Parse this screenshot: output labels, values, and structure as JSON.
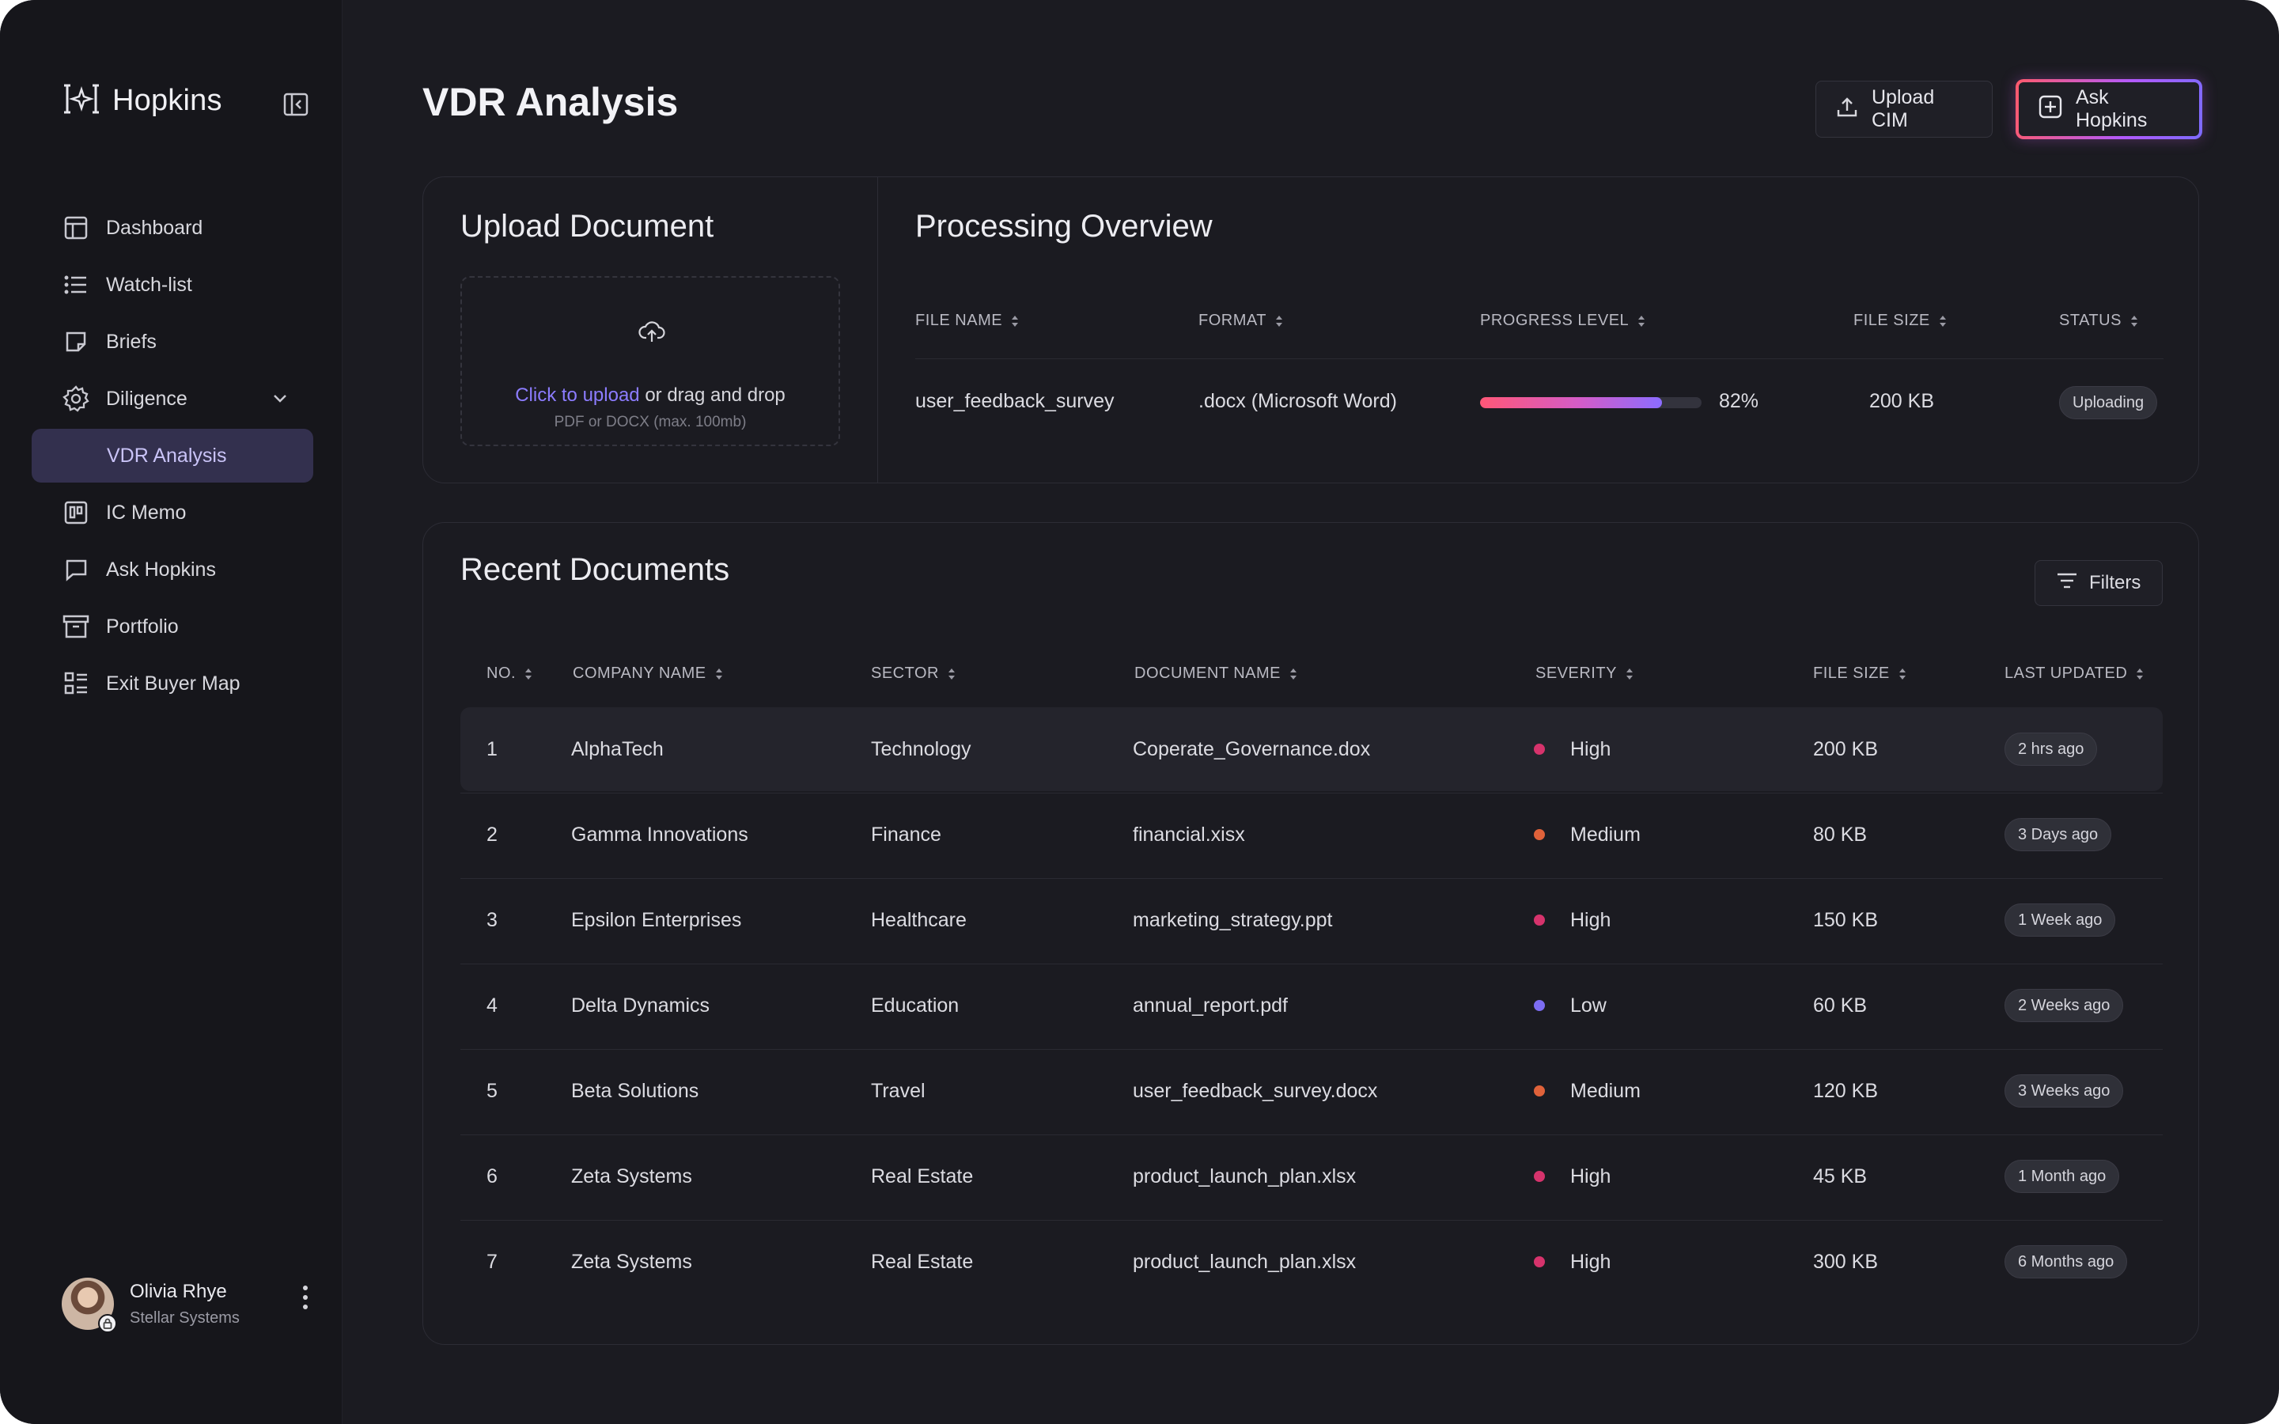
{
  "app": {
    "name": "Hopkins"
  },
  "sidebar": {
    "items": [
      {
        "label": "Dashboard",
        "icon": "layout-icon"
      },
      {
        "label": "Watch-list",
        "icon": "list-icon"
      },
      {
        "label": "Briefs",
        "icon": "note-icon"
      },
      {
        "label": "Diligence",
        "icon": "gear-icon"
      },
      {
        "label": "VDR Analysis",
        "icon": ""
      },
      {
        "label": "IC Memo",
        "icon": "board-icon"
      },
      {
        "label": "Ask Hopkins",
        "icon": "chat-icon"
      },
      {
        "label": "Portfolio",
        "icon": "archive-icon"
      },
      {
        "label": "Exit Buyer Map",
        "icon": "map-list-icon"
      }
    ],
    "active_item": "VDR Analysis",
    "user": {
      "name": "Olivia Rhye",
      "org": "Stellar Systems"
    }
  },
  "header": {
    "title": "VDR Analysis",
    "upload_label": "Upload CIM",
    "ask_label": "Ask Hopkins"
  },
  "upload": {
    "title": "Upload Document",
    "link_text": "Click to upload",
    "rest_text": "or drag and drop",
    "hint": "PDF or DOCX (max. 100mb)"
  },
  "processing": {
    "title": "Processing Overview",
    "columns": [
      "FILE NAME",
      "FORMAT",
      "PROGRESS LEVEL",
      "FILE SIZE",
      "STATUS"
    ],
    "row": {
      "file_name": "user_feedback_survey",
      "format": ".docx (Microsoft Word)",
      "progress": 82,
      "progress_label": "82%",
      "file_size": "200 KB",
      "status": "Uploading"
    }
  },
  "recent": {
    "title": "Recent Documents",
    "filters_label": "Filters",
    "columns": [
      "NO.",
      "COMPANY NAME",
      "SECTOR",
      "DOCUMENT NAME",
      "SEVERITY",
      "FILE SIZE",
      "LAST UPDATED"
    ],
    "severity_colors": {
      "High": "#d6336c",
      "Medium": "#e0623a",
      "Low": "#7c6cf2"
    },
    "rows": [
      {
        "no": "1",
        "company": "AlphaTech",
        "sector": "Technology",
        "document": "Coperate_Governance.dox",
        "severity": "High",
        "size": "200 KB",
        "updated": "2 hrs ago"
      },
      {
        "no": "2",
        "company": "Gamma Innovations",
        "sector": "Finance",
        "document": "financial.xisx",
        "severity": "Medium",
        "size": "80 KB",
        "updated": "3 Days ago"
      },
      {
        "no": "3",
        "company": "Epsilon Enterprises",
        "sector": "Healthcare",
        "document": "marketing_strategy.ppt",
        "severity": "High",
        "size": "150 KB",
        "updated": "1 Week ago"
      },
      {
        "no": "4",
        "company": "Delta Dynamics",
        "sector": "Education",
        "document": "annual_report.pdf",
        "severity": "Low",
        "size": "60 KB",
        "updated": "2 Weeks ago"
      },
      {
        "no": "5",
        "company": "Beta Solutions",
        "sector": "Travel",
        "document": "user_feedback_survey.docx",
        "severity": "Medium",
        "size": "120 KB",
        "updated": "3 Weeks ago"
      },
      {
        "no": "6",
        "company": "Zeta Systems",
        "sector": "Real Estate",
        "document": "product_launch_plan.xlsx",
        "severity": "High",
        "size": "45 KB",
        "updated": "1 Month ago"
      },
      {
        "no": "7",
        "company": "Zeta Systems",
        "sector": "Real Estate",
        "document": "product_launch_plan.xlsx",
        "severity": "High",
        "size": "300 KB",
        "updated": "6 Months ago"
      }
    ]
  }
}
